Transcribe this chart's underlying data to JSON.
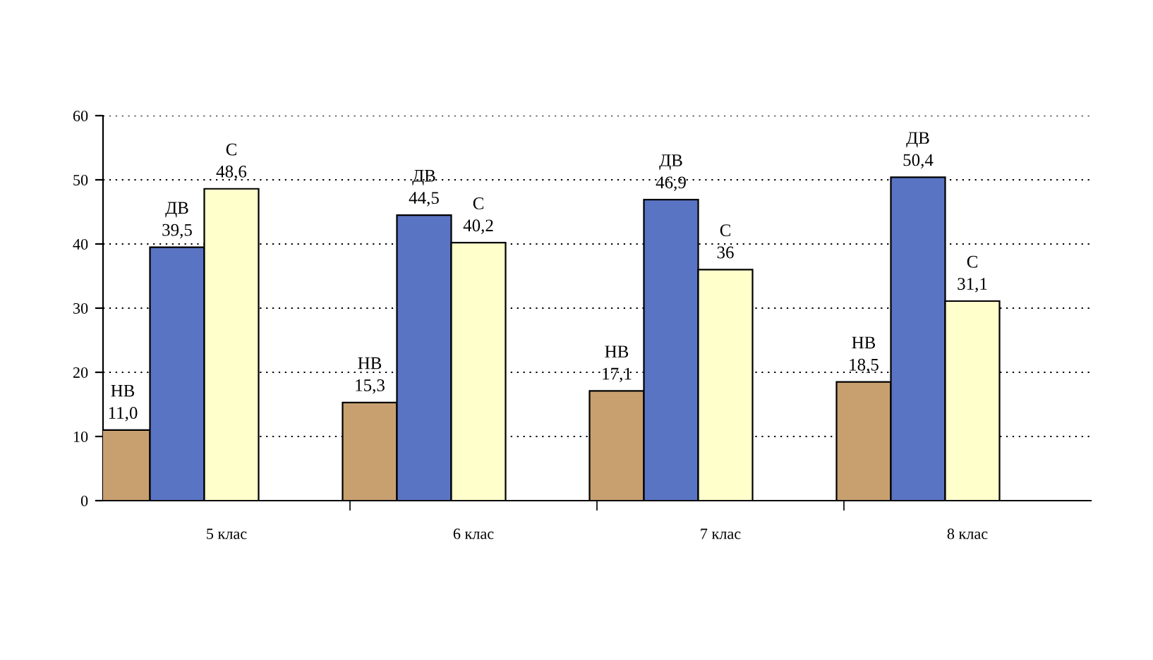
{
  "chart_data": {
    "type": "bar",
    "categories": [
      "5 клас",
      "6 клас",
      "7 клас",
      "8 клас"
    ],
    "series": [
      {
        "name": "НВ",
        "color": "#c8a070",
        "values": [
          11.0,
          15.3,
          17.1,
          18.5
        ],
        "value_labels": [
          "11,0",
          "15,3",
          "17,1",
          "18,5"
        ]
      },
      {
        "name": "ДВ",
        "color": "#5a74c4",
        "values": [
          39.5,
          44.5,
          46.9,
          50.4
        ],
        "value_labels": [
          "39,5",
          "44,5",
          "46,9",
          "50,4"
        ]
      },
      {
        "name": "С",
        "color": "#ffffcc",
        "values": [
          48.6,
          40.2,
          36,
          31.1
        ],
        "value_labels": [
          "48,6",
          "40,2",
          "36",
          "31,1"
        ]
      }
    ],
    "ylim": [
      0,
      60
    ],
    "yticks": [
      0,
      10,
      20,
      30,
      40,
      50,
      60
    ],
    "grid": "y",
    "legend": false
  }
}
